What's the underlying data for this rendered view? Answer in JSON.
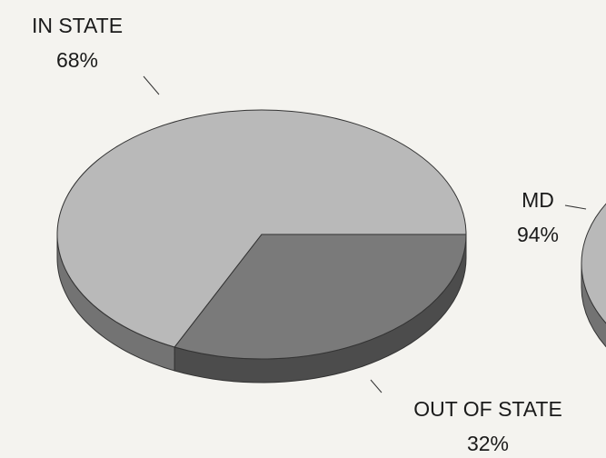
{
  "chart_data": [
    {
      "type": "pie",
      "categories": [
        "IN STATE",
        "OUT OF STATE"
      ],
      "values": [
        68,
        32
      ],
      "value_labels": [
        "68%",
        "32%"
      ],
      "colors": [
        "#b9b9b9",
        "#7a7a7a"
      ]
    },
    {
      "type": "pie",
      "categories": [
        "MD"
      ],
      "values": [
        94
      ],
      "value_labels": [
        "94%"
      ],
      "colors": [
        "#b9b9b9"
      ]
    }
  ]
}
